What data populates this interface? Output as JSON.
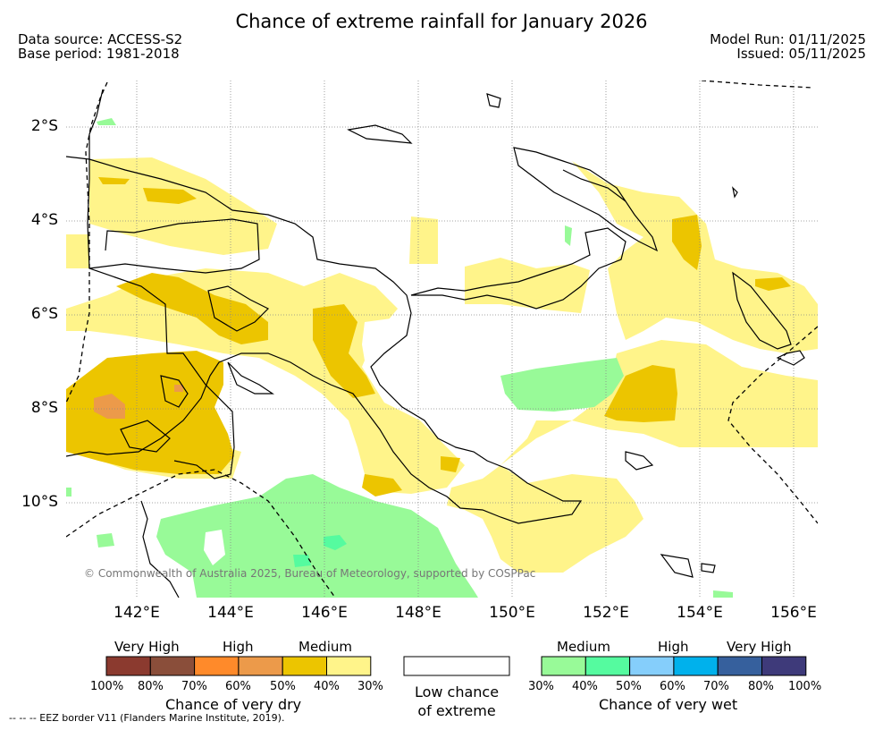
{
  "title": "Chance of extreme rainfall for January 2026",
  "data_source": "Data source: ACCESS-S2",
  "base_period": "Base period: 1981-2018",
  "model_run": "Model Run: 01/11/2025",
  "issued": "Issued: 05/11/2025",
  "map": {
    "lat_labels": [
      "2°S",
      "4°S",
      "6°S",
      "8°S",
      "10°S"
    ],
    "lon_labels": [
      "142°E",
      "144°E",
      "146°E",
      "148°E",
      "150°E",
      "152°E",
      "154°E",
      "156°E"
    ],
    "copyright": "© Commonwealth of Australia 2025, Bureau of Meteorology, supported by COSPPac",
    "eez_note": "--  --  -- EEZ border V11 (Flanders Marine Institute, 2019)."
  },
  "legend": {
    "dry": {
      "categories": [
        "Very High",
        "High",
        "Medium"
      ],
      "colors": [
        "#8b3a2f",
        "#8a4e3a",
        "#ff8a2a",
        "#ec9a4a",
        "#ecc500",
        "#fff48a"
      ],
      "ticks": [
        "100%",
        "80%",
        "70%",
        "60%",
        "50%",
        "40%",
        "30%"
      ],
      "title": "Chance of very dry"
    },
    "low": {
      "title_line1": "Low chance",
      "title_line2": "of extreme",
      "color": "#ffffff"
    },
    "wet": {
      "categories": [
        "Medium",
        "High",
        "Very High"
      ],
      "colors": [
        "#98fa98",
        "#55fb9f",
        "#85cefb",
        "#00b1ec",
        "#36609d",
        "#3e3a7a"
      ],
      "ticks": [
        "30%",
        "40%",
        "50%",
        "60%",
        "70%",
        "80%",
        "100%"
      ],
      "title": "Chance of very wet"
    }
  }
}
